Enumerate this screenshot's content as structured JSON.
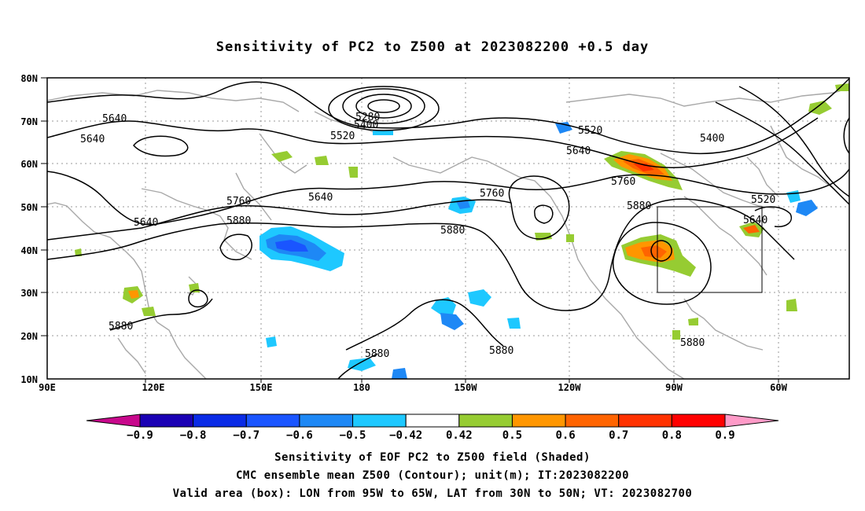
{
  "title": "Sensitivity of PC2 to Z500 at 2023082200 +0.5 day",
  "lat_labels": [
    "80N",
    "70N",
    "60N",
    "50N",
    "40N",
    "30N",
    "20N",
    "10N"
  ],
  "lon_labels": [
    "90E",
    "120E",
    "150E",
    "180",
    "150W",
    "120W",
    "90W",
    "60W"
  ],
  "contour_labels": [
    "5640",
    "5640",
    "5640",
    "5640",
    "5280",
    "5400",
    "5520",
    "5520",
    "5640",
    "5400",
    "5760",
    "5760",
    "5760",
    "5880",
    "5880",
    "5880",
    "5880",
    "5880",
    "5880",
    "5880",
    "5520",
    "5640"
  ],
  "colorbar": {
    "labels": [
      "-0.9",
      "-0.8",
      "-0.7",
      "-0.6",
      "-0.5",
      "-0.42",
      "0.42",
      "0.5",
      "0.6",
      "0.7",
      "0.8",
      "0.9"
    ],
    "colors": [
      "#1a00b4",
      "#0a2be6",
      "#1a55ff",
      "#1e88f5",
      "#1ec8ff",
      "#ffffff",
      "#96cc32",
      "#ff9600",
      "#ff6400",
      "#ff3200",
      "#ff0000"
    ],
    "low_end_color": "#c8088c",
    "high_end_color": "#ff9bc8"
  },
  "valid_box": {
    "lon_from": "95W",
    "lon_to": "65W",
    "lat_from": "30N",
    "lat_to": "50N"
  },
  "captions": [
    "Sensitivity of EOF PC2 to Z500 field (Shaded)",
    "CMC ensemble mean Z500 (Contour); unit(m); IT:2023082200",
    "Valid area (box): LON from 95W to 65W, LAT from 30N to 50N; VT: 2023082700"
  ]
}
